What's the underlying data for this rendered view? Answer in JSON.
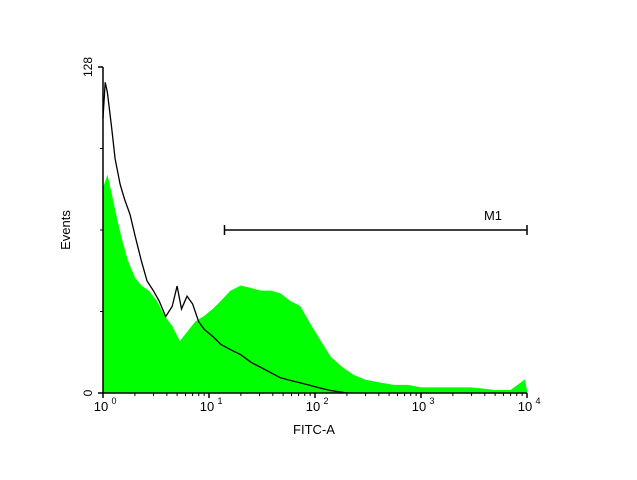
{
  "chart_data": {
    "type": "area",
    "title": "",
    "xlabel": "FITC-A",
    "ylabel": "Events",
    "x_scale": "log",
    "xlim": [
      1,
      10000
    ],
    "ylim": [
      0,
      128
    ],
    "x_ticks": [
      {
        "value": 1,
        "base": "10",
        "exp": "0"
      },
      {
        "value": 10,
        "base": "10",
        "exp": "1"
      },
      {
        "value": 100,
        "base": "10",
        "exp": "2"
      },
      {
        "value": 1000,
        "base": "10",
        "exp": "3"
      },
      {
        "value": 10000,
        "base": "10",
        "exp": "4"
      }
    ],
    "y_ticks": [
      {
        "value": 0,
        "label": "0"
      },
      {
        "value": 128,
        "label": "128"
      }
    ],
    "grid": false,
    "marker": {
      "label": "M1",
      "x_start": 14,
      "x_end": 10000,
      "y": 64
    },
    "series": [
      {
        "color": "#00ff00",
        "style": "filled",
        "x": [
          1.0,
          1.1,
          1.2,
          1.35,
          1.5,
          1.7,
          2.0,
          2.3,
          2.7,
          3.2,
          3.8,
          4.5,
          5.3,
          6.3,
          7.5,
          9.0,
          11,
          13,
          16,
          20,
          25,
          31,
          38,
          47,
          58,
          72,
          90,
          110,
          140,
          180,
          230,
          300,
          400,
          550,
          750,
          1000,
          1500,
          2000,
          3000,
          5000,
          7000,
          9500,
          10000
        ],
        "values": [
          80,
          85,
          78,
          68,
          60,
          52,
          45,
          42,
          40,
          36,
          30,
          26,
          20,
          24,
          28,
          30,
          33,
          36,
          40,
          42,
          41,
          40,
          40,
          39,
          36,
          34,
          27,
          21,
          14,
          10,
          7,
          5,
          4,
          3,
          3,
          2,
          2,
          2,
          2,
          1,
          1,
          5,
          0
        ]
      },
      {
        "color": "#000000",
        "style": "line",
        "x": [
          1.0,
          1.05,
          1.1,
          1.2,
          1.3,
          1.45,
          1.6,
          1.8,
          2.0,
          2.3,
          2.6,
          3.0,
          3.4,
          3.9,
          4.5,
          5.0,
          5.5,
          6.2,
          7.0,
          8.0,
          9.0,
          11,
          13,
          16,
          20,
          25,
          31,
          38,
          47,
          58,
          72,
          90,
          110,
          140,
          200
        ],
        "values": [
          108,
          122,
          118,
          105,
          92,
          82,
          76,
          70,
          62,
          52,
          44,
          40,
          36,
          30,
          34,
          42,
          33,
          38,
          35,
          28,
          25,
          22,
          19,
          17,
          15,
          12,
          10,
          8,
          6,
          5,
          4,
          3,
          2,
          1,
          0
        ]
      }
    ]
  }
}
